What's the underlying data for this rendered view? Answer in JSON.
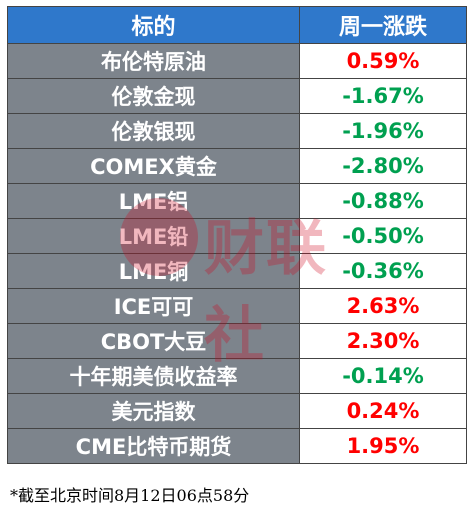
{
  "header": {
    "col1": "标的",
    "col2": "周一涨跌"
  },
  "rows": [
    {
      "name": "布伦特原油",
      "change": "0.59%",
      "direction": "up"
    },
    {
      "name": "伦敦金现",
      "change": "-1.67%",
      "direction": "down"
    },
    {
      "name": "伦敦银现",
      "change": "-1.96%",
      "direction": "down"
    },
    {
      "name": "COMEX黄金",
      "change": "-2.80%",
      "direction": "down"
    },
    {
      "name": "LME铝",
      "change": "-0.88%",
      "direction": "down"
    },
    {
      "name": "LME铅",
      "change": "-0.50%",
      "direction": "down"
    },
    {
      "name": "LME铜",
      "change": "-0.36%",
      "direction": "down"
    },
    {
      "name": "ICE可可",
      "change": "2.63%",
      "direction": "up"
    },
    {
      "name": "CBOT大豆",
      "change": "2.30%",
      "direction": "up"
    },
    {
      "name": "十年期美债收益率",
      "change": "-0.14%",
      "direction": "down"
    },
    {
      "name": "美元指数",
      "change": "0.24%",
      "direction": "up"
    },
    {
      "name": "CME比特币期货",
      "change": "1.95%",
      "direction": "up"
    }
  ],
  "footnote": "*截至北京时间8月12日06点58分",
  "watermark": {
    "text": "财联社"
  },
  "colors": {
    "header_bg": "#2f78cb",
    "name_bg": "#7d848c",
    "up": "#ff0000",
    "down": "#00a050"
  }
}
